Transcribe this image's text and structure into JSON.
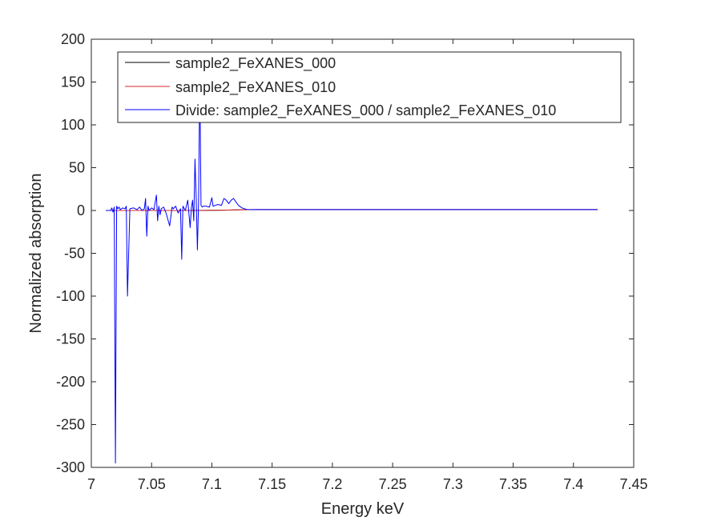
{
  "chart_data": {
    "type": "line",
    "xlabel": "Energy keV",
    "ylabel": "Normalized absorption",
    "xlim": [
      7.0,
      7.45
    ],
    "ylim": [
      -300,
      200
    ],
    "xticks": [
      "7",
      "7.05",
      "7.1",
      "7.15",
      "7.2",
      "7.25",
      "7.3",
      "7.35",
      "7.4",
      "7.45"
    ],
    "yticks": [
      "200",
      "150",
      "100",
      "50",
      "0",
      "-50",
      "-100",
      "-150",
      "-200",
      "-250",
      "-300"
    ],
    "legend_position": "top-right",
    "series": [
      {
        "name": "sample2_FeXANES_000",
        "color": "#000000",
        "x": [
          7.012,
          7.05,
          7.08,
          7.1,
          7.11,
          7.12,
          7.13,
          7.14,
          7.2,
          7.3,
          7.42
        ],
        "y": [
          0,
          0,
          0.05,
          0.2,
          0.4,
          0.7,
          0.9,
          1.0,
          1.0,
          1.0,
          1.0
        ]
      },
      {
        "name": "sample2_FeXANES_010",
        "color": "#d62728",
        "x": [
          7.012,
          7.05,
          7.08,
          7.1,
          7.11,
          7.12,
          7.13,
          7.14,
          7.2,
          7.3,
          7.42
        ],
        "y": [
          0,
          0,
          0.05,
          0.2,
          0.4,
          0.7,
          0.9,
          1.0,
          1.0,
          1.0,
          1.0
        ]
      },
      {
        "name": "Divide: sample2_FeXANES_000 / sample2_FeXANES_010",
        "color": "#0000ff",
        "x": [
          7.012,
          7.016,
          7.017,
          7.018,
          7.019,
          7.02,
          7.021,
          7.022,
          7.023,
          7.024,
          7.026,
          7.028,
          7.029,
          7.03,
          7.032,
          7.035,
          7.038,
          7.04,
          7.042,
          7.044,
          7.045,
          7.046,
          7.047,
          7.048,
          7.05,
          7.052,
          7.053,
          7.054,
          7.055,
          7.056,
          7.057,
          7.058,
          7.06,
          7.062,
          7.065,
          7.067,
          7.068,
          7.07,
          7.072,
          7.074,
          7.075,
          7.076,
          7.078,
          7.08,
          7.082,
          7.083,
          7.084,
          7.085,
          7.086,
          7.087,
          7.088,
          7.089,
          7.09,
          7.091,
          7.092,
          7.093,
          7.095,
          7.098,
          7.1,
          7.101,
          7.103,
          7.105,
          7.108,
          7.11,
          7.112,
          7.114,
          7.116,
          7.118,
          7.12,
          7.122,
          7.125,
          7.128,
          7.13,
          7.135,
          7.15,
          7.2,
          7.3,
          7.42
        ],
        "y": [
          0,
          0,
          3,
          -2,
          4,
          -295,
          5,
          2,
          4,
          1,
          3,
          2,
          5,
          -100,
          2,
          3,
          1,
          4,
          0,
          2,
          14,
          -30,
          5,
          0,
          3,
          1,
          10,
          18,
          -12,
          5,
          -5,
          2,
          4,
          -3,
          -18,
          4,
          2,
          5,
          -3,
          2,
          -57,
          5,
          0,
          12,
          -20,
          3,
          12,
          -12,
          60,
          15,
          -46,
          12,
          160,
          6,
          4,
          5,
          5,
          4,
          15,
          5,
          6,
          7,
          6,
          14,
          12,
          8,
          12,
          14,
          10,
          6,
          3,
          1.5,
          1,
          1,
          1,
          1,
          1,
          1
        ]
      }
    ]
  }
}
